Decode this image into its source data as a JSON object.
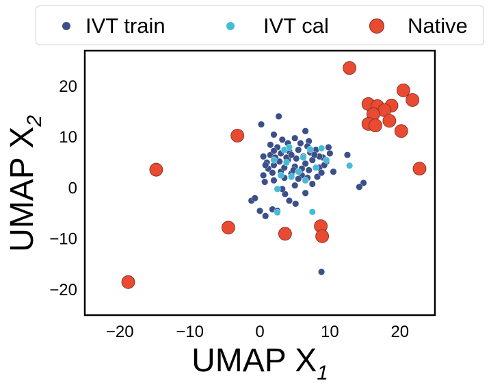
{
  "chart_data": {
    "type": "scatter",
    "title": "",
    "xlabel": "UMAP X",
    "xlabel_sub": "1",
    "ylabel": "UMAP X",
    "ylabel_sub": "2",
    "xlim": [
      -25,
      25
    ],
    "ylim": [
      -25,
      27
    ],
    "xticks": [
      -20,
      -10,
      0,
      10,
      20
    ],
    "yticks": [
      -20,
      -10,
      0,
      10,
      20
    ],
    "xtick_labels": [
      "−20",
      "−10",
      "0",
      "10",
      "20"
    ],
    "ytick_labels": [
      "−20",
      "−10",
      "0",
      "10",
      "20"
    ],
    "grid": false,
    "legend_position": "top, outside plot",
    "series": [
      {
        "name": "IVT train",
        "color": "#3b4f8a",
        "marker_size": "small",
        "points": [
          [
            0.2,
            12.5
          ],
          [
            2.7,
            14.1
          ],
          [
            6.5,
            11.2
          ],
          [
            12.5,
            6.5
          ],
          [
            9.8,
            8.0
          ],
          [
            10.5,
            3.2
          ],
          [
            14.8,
            1.0
          ],
          [
            14.2,
            0.2
          ],
          [
            8.8,
            -16.5
          ],
          [
            -1.2,
            -2.5
          ],
          [
            -0.7,
            -2.0
          ],
          [
            0.0,
            -4.5
          ],
          [
            0.8,
            -5.5
          ],
          [
            1.8,
            -4.2
          ],
          [
            2.5,
            -4.5
          ],
          [
            3.6,
            -1.2
          ],
          [
            3.2,
            -0.2
          ],
          [
            4.2,
            -2.5
          ],
          [
            5.1,
            -3.1
          ],
          [
            6.5,
            -1.0
          ],
          [
            5.0,
            0.5
          ],
          [
            7.5,
            0.8
          ],
          [
            2.0,
            1.5
          ],
          [
            0.5,
            2.5
          ],
          [
            0.7,
            1.2
          ],
          [
            1.5,
            8.5
          ],
          [
            0.5,
            6.2
          ],
          [
            8.2,
            2.2
          ],
          [
            9.5,
            5.2
          ],
          [
            10.0,
            6.8
          ],
          [
            2.0,
            10.5
          ],
          [
            5.0,
            9.8
          ],
          [
            7.0,
            9.2
          ],
          [
            1.2,
            3.8
          ],
          [
            3.0,
            3.2
          ],
          [
            4.5,
            2.8
          ],
          [
            6.0,
            2.5
          ],
          [
            7.0,
            3.5
          ],
          [
            8.5,
            4.0
          ],
          [
            9.0,
            6.0
          ],
          [
            8.0,
            7.5
          ],
          [
            6.8,
            8.2
          ],
          [
            4.0,
            8.8
          ],
          [
            2.5,
            8.0
          ],
          [
            1.5,
            6.5
          ],
          [
            1.0,
            5.0
          ],
          [
            2.0,
            4.5
          ],
          [
            3.5,
            4.0
          ],
          [
            5.0,
            4.2
          ],
          [
            6.5,
            4.8
          ],
          [
            7.5,
            5.5
          ],
          [
            8.5,
            6.2
          ],
          [
            7.2,
            7.0
          ],
          [
            5.5,
            7.5
          ],
          [
            4.2,
            7.2
          ],
          [
            3.0,
            6.8
          ],
          [
            2.2,
            6.0
          ],
          [
            2.8,
            5.2
          ],
          [
            4.0,
            5.5
          ],
          [
            5.2,
            5.8
          ],
          [
            6.2,
            6.2
          ],
          [
            7.8,
            6.5
          ],
          [
            6.0,
            3.8
          ],
          [
            4.8,
            3.5
          ],
          [
            3.8,
            6.0
          ],
          [
            5.8,
            8.8
          ],
          [
            3.2,
            9.5
          ],
          [
            2.0,
            7.3
          ],
          [
            9.2,
            4.5
          ],
          [
            8.8,
            3.0
          ],
          [
            1.8,
            3.0
          ],
          [
            0.8,
            4.5
          ],
          [
            3.5,
            2.0
          ],
          [
            5.5,
            1.8
          ],
          [
            6.8,
            2.0
          ],
          [
            4.5,
            6.5
          ]
        ]
      },
      {
        "name": "IVT cal",
        "color": "#45bcd6",
        "marker_size": "small",
        "points": [
          [
            12.8,
            4.4
          ],
          [
            7.5,
            -4.7
          ],
          [
            2.5,
            -4.8
          ],
          [
            2.5,
            -0.2
          ],
          [
            3.5,
            7.5
          ],
          [
            4.2,
            8.0
          ],
          [
            8.8,
            7.8
          ],
          [
            7.2,
            7.6
          ],
          [
            3.8,
            5.0
          ],
          [
            2.0,
            5.5
          ],
          [
            5.5,
            3.2
          ],
          [
            6.5,
            1.5
          ],
          [
            4.5,
            2.2
          ],
          [
            9.5,
            5.5
          ],
          [
            8.0,
            4.0
          ],
          [
            3.0,
            2.5
          ],
          [
            6.2,
            6.0
          ]
        ]
      },
      {
        "name": "Native",
        "color": "#e84a32",
        "marker_size": "large",
        "points": [
          [
            12.8,
            23.6
          ],
          [
            20.5,
            19.2
          ],
          [
            21.8,
            17.3
          ],
          [
            15.5,
            16.5
          ],
          [
            16.8,
            16.1
          ],
          [
            18.8,
            16.2
          ],
          [
            17.8,
            15.3
          ],
          [
            16.2,
            14.5
          ],
          [
            18.5,
            13.2
          ],
          [
            15.5,
            12.6
          ],
          [
            16.5,
            12.3
          ],
          [
            20.2,
            11.2
          ],
          [
            22.8,
            3.8
          ],
          [
            -3.2,
            10.3
          ],
          [
            -14.8,
            3.6
          ],
          [
            -4.5,
            -7.8
          ],
          [
            3.6,
            -9.0
          ],
          [
            8.7,
            -7.5
          ],
          [
            8.9,
            -9.5
          ],
          [
            -18.8,
            -18.5
          ]
        ]
      }
    ]
  }
}
